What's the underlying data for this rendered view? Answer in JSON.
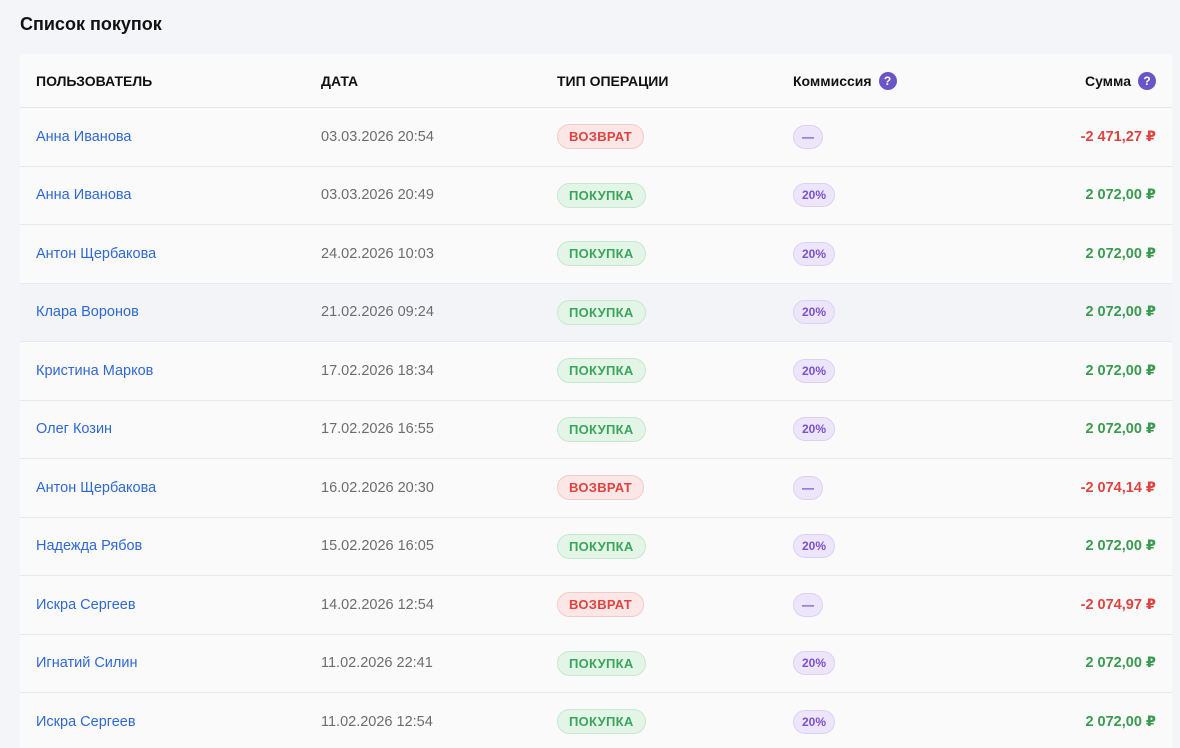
{
  "page_title": "Список покупок",
  "columns": {
    "user": "ПОЛЬЗОВАТЕЛЬ",
    "date": "ДАТА",
    "type": "ТИП ОПЕРАЦИИ",
    "commission": "Коммиссия",
    "sum": "Сумма",
    "help_glyph": "?"
  },
  "colors": {
    "link": "#2f68d6",
    "purchase": "#3aa55a",
    "refund": "#e0433f",
    "commission": "#7a4fd0",
    "help_icon": "#6a55c8"
  },
  "rows": [
    {
      "user": "Анна Иванова",
      "date": "03.03.2026 20:54",
      "type": "ВОЗВРАТ",
      "kind": "refund",
      "commission": "—",
      "sum": "-2 471,27 ₽"
    },
    {
      "user": "Анна Иванова",
      "date": "03.03.2026 20:49",
      "type": "ПОКУПКА",
      "kind": "purchase",
      "commission": "20%",
      "sum": "2 072,00 ₽"
    },
    {
      "user": "Антон Щербакова",
      "date": "24.02.2026 10:03",
      "type": "ПОКУПКА",
      "kind": "purchase",
      "commission": "20%",
      "sum": "2 072,00 ₽"
    },
    {
      "user": "Клара Воронов",
      "date": "21.02.2026 09:24",
      "type": "ПОКУПКА",
      "kind": "purchase",
      "commission": "20%",
      "sum": "2 072,00 ₽",
      "hovered": true
    },
    {
      "user": "Кристина Марков",
      "date": "17.02.2026 18:34",
      "type": "ПОКУПКА",
      "kind": "purchase",
      "commission": "20%",
      "sum": "2 072,00 ₽"
    },
    {
      "user": "Олег Козин",
      "date": "17.02.2026 16:55",
      "type": "ПОКУПКА",
      "kind": "purchase",
      "commission": "20%",
      "sum": "2 072,00 ₽"
    },
    {
      "user": "Антон Щербакова",
      "date": "16.02.2026 20:30",
      "type": "ВОЗВРАТ",
      "kind": "refund",
      "commission": "—",
      "sum": "-2 074,14 ₽"
    },
    {
      "user": "Надежда Рябов",
      "date": "15.02.2026 16:05",
      "type": "ПОКУПКА",
      "kind": "purchase",
      "commission": "20%",
      "sum": "2 072,00 ₽"
    },
    {
      "user": "Искра Сергеев",
      "date": "14.02.2026 12:54",
      "type": "ВОЗВРАТ",
      "kind": "refund",
      "commission": "—",
      "sum": "-2 074,97 ₽"
    },
    {
      "user": "Игнатий Силин",
      "date": "11.02.2026 22:41",
      "type": "ПОКУПКА",
      "kind": "purchase",
      "commission": "20%",
      "sum": "2 072,00 ₽"
    },
    {
      "user": "Искра Сергеев",
      "date": "11.02.2026 12:54",
      "type": "ПОКУПКА",
      "kind": "purchase",
      "commission": "20%",
      "sum": "2 072,00 ₽"
    }
  ]
}
